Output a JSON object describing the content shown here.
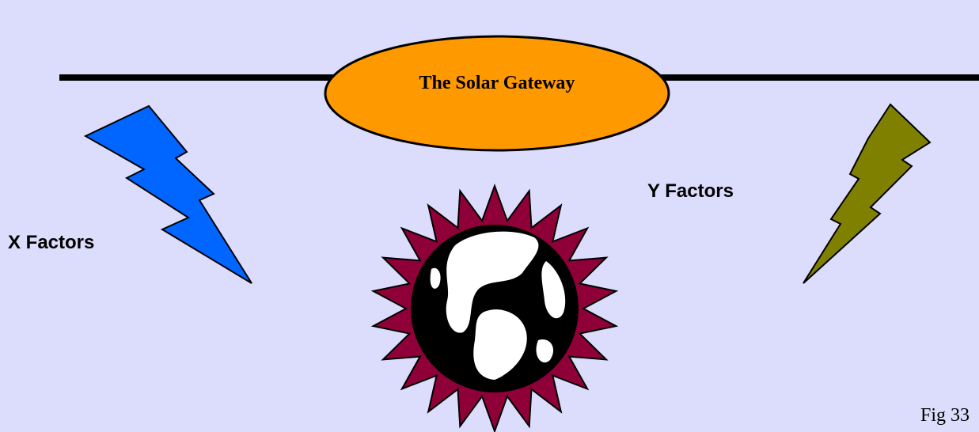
{
  "title": "The Solar Gateway",
  "left_label": "X Factors",
  "right_label": "Y Factors",
  "figure_label": "Fig 33"
}
